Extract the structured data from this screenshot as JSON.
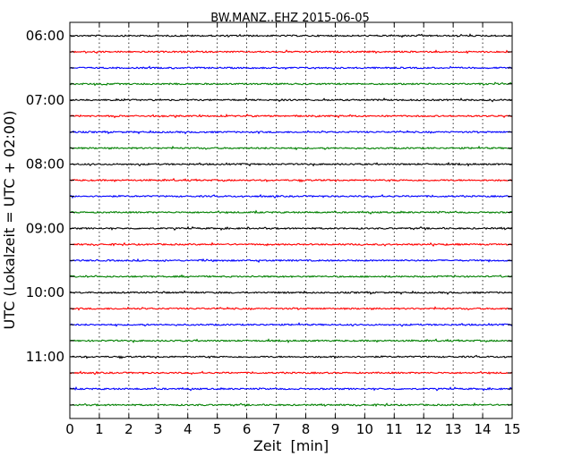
{
  "chart_data": {
    "type": "line",
    "title": "BW.MANZ..EHZ 2015-06-05",
    "xlabel": "Zeit  [min]",
    "ylabel": "UTC (Lokalzeit = UTC + 02:00)",
    "xlim": [
      0,
      15
    ],
    "x_ticks": [
      0,
      1,
      2,
      3,
      4,
      5,
      6,
      7,
      8,
      9,
      10,
      11,
      12,
      13,
      14,
      15
    ],
    "y_tick_labels": [
      "06:00",
      "07:00",
      "08:00",
      "09:00",
      "10:00",
      "11:00"
    ],
    "trace_start_times": [
      "06:00",
      "06:15",
      "06:30",
      "06:45",
      "07:00",
      "07:15",
      "07:30",
      "07:45",
      "08:00",
      "08:15",
      "08:30",
      "08:45",
      "09:00",
      "09:15",
      "09:30",
      "09:45",
      "10:00",
      "10:15",
      "10:30",
      "10:45",
      "11:00",
      "11:15",
      "11:30",
      "11:45"
    ],
    "trace_color_cycle": [
      "#000000",
      "#ff0000",
      "#0000ff",
      "#008000"
    ],
    "vertical_grid": "dotted at every minute",
    "trace_style": "low-amplitude noise, no visible events"
  }
}
